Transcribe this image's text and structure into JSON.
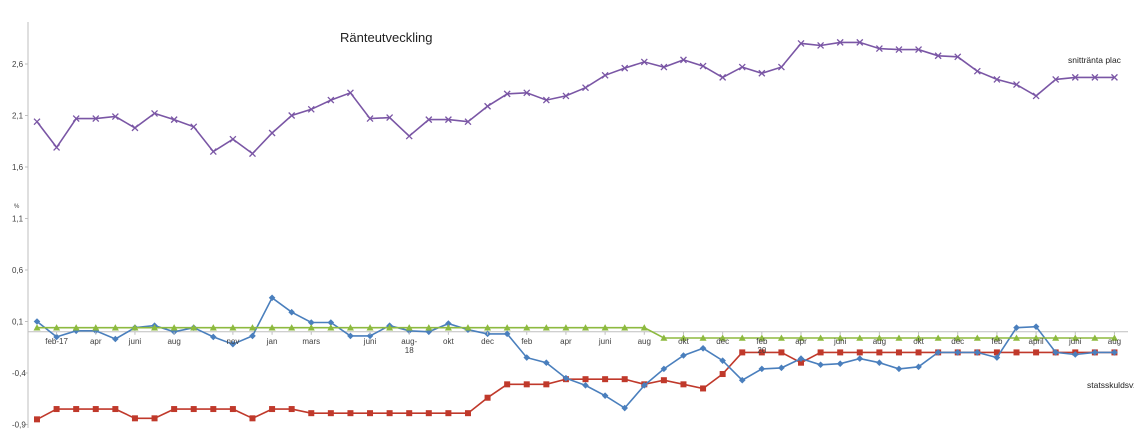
{
  "chart_data": {
    "type": "line",
    "title": "Ränteutveckling",
    "ylabel": "%",
    "ylim": [
      -0.9,
      3.05
    ],
    "yticks": [
      2.6,
      2.1,
      1.6,
      1.1,
      0.6,
      0.1,
      -0.4,
      -0.9
    ],
    "yticklabels": [
      "2,6",
      "2,1",
      "1,6",
      "1,1",
      "0,6",
      "0,1",
      "-0,4",
      "-0,9"
    ],
    "x_labels": [
      {
        "index": 1,
        "label": "feb-17"
      },
      {
        "index": 3,
        "label": "apr"
      },
      {
        "index": 5,
        "label": "juni"
      },
      {
        "index": 7,
        "label": "aug"
      },
      {
        "index": 10,
        "label": "nov"
      },
      {
        "index": 12,
        "label": "jan"
      },
      {
        "index": 14,
        "label": "mars"
      },
      {
        "index": 17,
        "label": "juni"
      },
      {
        "index": 19,
        "label": "aug-18"
      },
      {
        "index": 21,
        "label": "okt"
      },
      {
        "index": 23,
        "label": "dec"
      },
      {
        "index": 25,
        "label": "feb"
      },
      {
        "index": 27,
        "label": "apr"
      },
      {
        "index": 29,
        "label": "juni"
      },
      {
        "index": 31,
        "label": "aug"
      },
      {
        "index": 33,
        "label": "okt"
      },
      {
        "index": 35,
        "label": "dec"
      },
      {
        "index": 37,
        "label": "feb 20"
      },
      {
        "index": 39,
        "label": "apr"
      },
      {
        "index": 41,
        "label": "juni"
      },
      {
        "index": 43,
        "label": "aug"
      },
      {
        "index": 45,
        "label": "okt"
      },
      {
        "index": 47,
        "label": "dec"
      },
      {
        "index": 49,
        "label": "feb"
      },
      {
        "index": 51,
        "label": "april"
      },
      {
        "index": 53,
        "label": "juni"
      },
      {
        "index": 55,
        "label": "aug"
      }
    ],
    "series": [
      {
        "name": "snittränta plac",
        "color": "#7a56a5",
        "marker": "x",
        "values": [
          2.04,
          1.79,
          2.07,
          2.07,
          2.09,
          1.98,
          2.12,
          2.06,
          1.99,
          1.75,
          1.87,
          1.73,
          1.93,
          2.1,
          2.16,
          2.25,
          2.32,
          2.07,
          2.08,
          1.9,
          2.06,
          2.06,
          2.04,
          2.19,
          2.31,
          2.32,
          2.25,
          2.29,
          2.37,
          2.49,
          2.56,
          2.62,
          2.57,
          2.64,
          2.58,
          2.47,
          2.57,
          2.51,
          2.57,
          2.8,
          2.78,
          2.81,
          2.81,
          2.75,
          2.74,
          2.74,
          2.68,
          2.67,
          2.53,
          2.45,
          2.4,
          2.29,
          2.45,
          2.47,
          2.47,
          2.47
        ]
      },
      {
        "name": "statsskuldsvx",
        "color": "#c0392b",
        "marker": "square",
        "values": [
          -0.85,
          -0.75,
          -0.75,
          -0.75,
          -0.75,
          -0.84,
          -0.84,
          -0.75,
          -0.75,
          -0.75,
          -0.75,
          -0.84,
          -0.75,
          -0.75,
          -0.79,
          -0.79,
          -0.79,
          -0.79,
          -0.79,
          -0.79,
          -0.79,
          -0.79,
          -0.79,
          -0.64,
          -0.51,
          -0.51,
          -0.51,
          -0.46,
          -0.46,
          -0.46,
          -0.46,
          -0.51,
          -0.47,
          -0.51,
          -0.55,
          -0.41,
          -0.2,
          -0.2,
          -0.2,
          -0.3,
          -0.2,
          -0.2,
          -0.2,
          -0.2,
          -0.2,
          -0.2,
          -0.2,
          -0.2,
          -0.2,
          -0.2,
          -0.2,
          -0.2,
          -0.2,
          -0.2,
          -0.2,
          -0.2
        ]
      },
      {
        "name": "",
        "color": "#4a7fbd",
        "marker": "diamond",
        "values": [
          0.1,
          -0.05,
          0.01,
          0.01,
          -0.07,
          0.04,
          0.06,
          0.0,
          0.04,
          -0.05,
          -0.12,
          -0.04,
          0.33,
          0.19,
          0.09,
          0.09,
          -0.04,
          -0.04,
          0.06,
          0.01,
          0.0,
          0.08,
          0.02,
          -0.02,
          -0.02,
          -0.25,
          -0.3,
          -0.45,
          -0.52,
          -0.62,
          -0.74,
          -0.52,
          -0.36,
          -0.23,
          -0.16,
          -0.28,
          -0.47,
          -0.36,
          -0.35,
          -0.26,
          -0.32,
          -0.31,
          -0.26,
          -0.3,
          -0.36,
          -0.34,
          -0.2,
          -0.2,
          -0.2,
          -0.25,
          0.04,
          0.05,
          -0.2,
          -0.22,
          -0.2,
          -0.2
        ]
      },
      {
        "name": "",
        "color": "#8dba3f",
        "marker": "triangle",
        "values": [
          0.04,
          0.04,
          0.04,
          0.04,
          0.04,
          0.04,
          0.04,
          0.04,
          0.04,
          0.04,
          0.04,
          0.04,
          0.04,
          0.04,
          0.04,
          0.04,
          0.04,
          0.04,
          0.04,
          0.04,
          0.04,
          0.04,
          0.04,
          0.04,
          0.04,
          0.04,
          0.04,
          0.04,
          0.04,
          0.04,
          0.04,
          0.04,
          -0.06,
          -0.06,
          -0.06,
          -0.06,
          -0.06,
          -0.06,
          -0.06,
          -0.06,
          -0.06,
          -0.06,
          -0.06,
          -0.06,
          -0.06,
          -0.06,
          -0.06,
          -0.06,
          -0.06,
          -0.06,
          -0.06,
          -0.06,
          -0.06,
          -0.06,
          -0.06,
          -0.06
        ]
      }
    ],
    "grid": false,
    "legend": "right, inline labels"
  }
}
